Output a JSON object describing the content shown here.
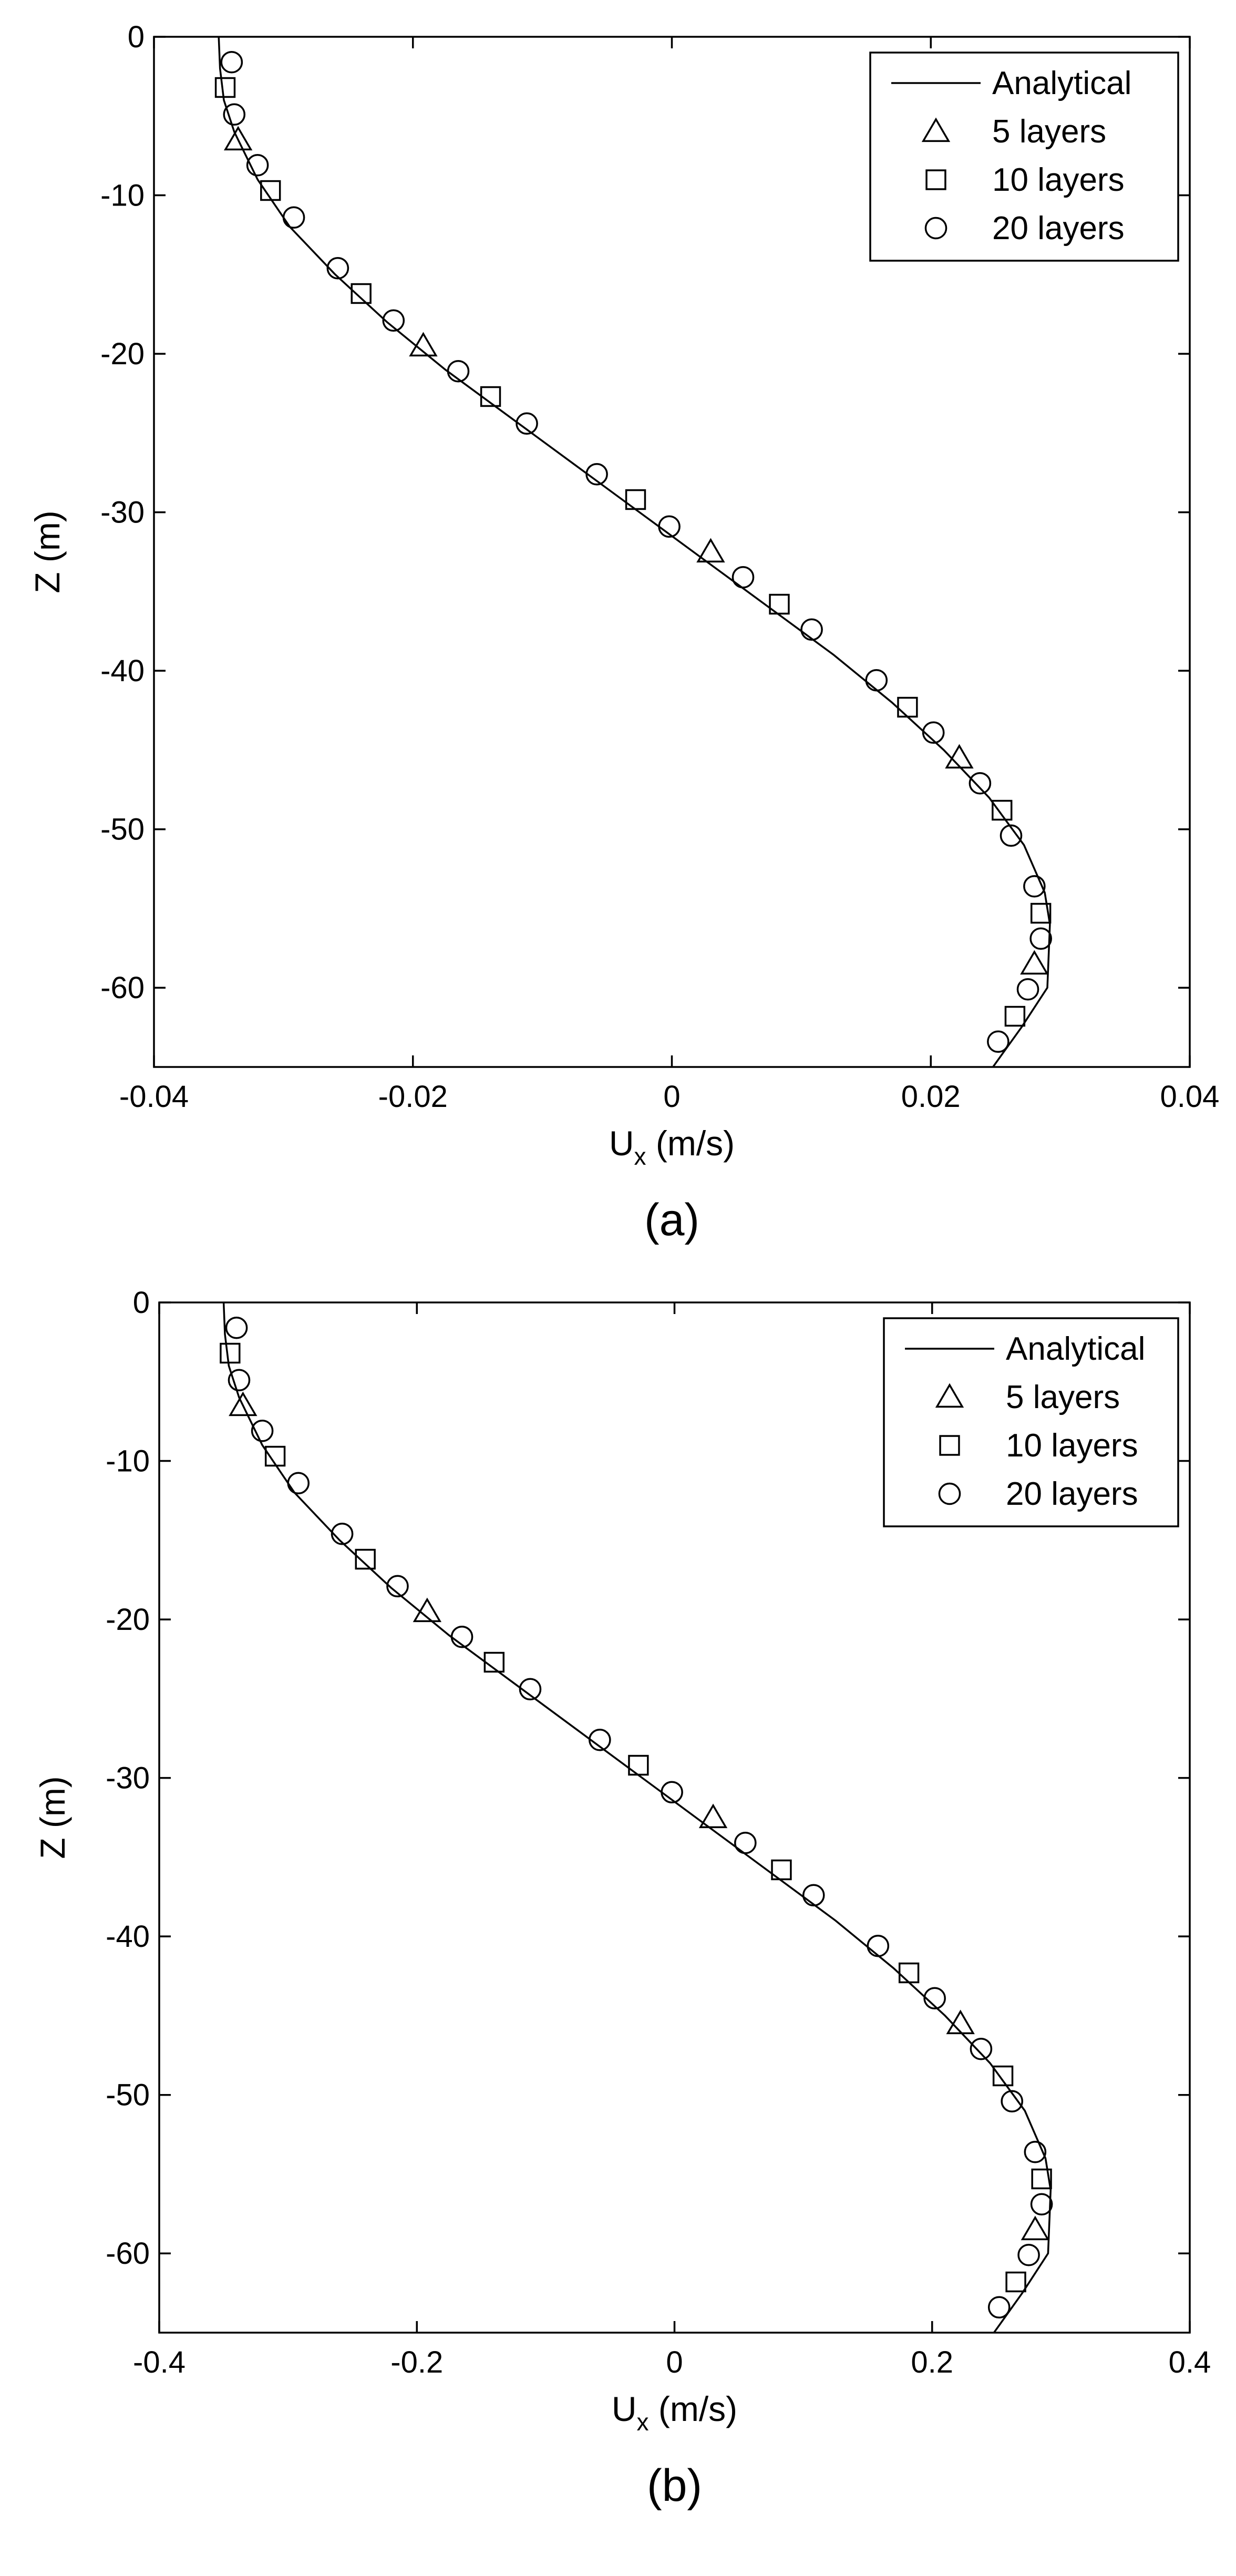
{
  "chart_data": [
    {
      "type": "line",
      "panel_label": "(a)",
      "xlabel_main": "U",
      "xlabel_sub": "x",
      "xlabel_unit": " (m/s)",
      "ylabel": "Z (m)",
      "xlim": [
        -0.04,
        0.04
      ],
      "ylim": [
        -65,
        0
      ],
      "xticks": [
        -0.04,
        -0.02,
        0,
        0.02,
        0.04
      ],
      "xtick_labels": [
        "-0.04",
        "-0.02",
        "0",
        "0.02",
        "0.04"
      ],
      "yticks": [
        0,
        -10,
        -20,
        -30,
        -40,
        -50,
        -60
      ],
      "ytick_labels": [
        "0",
        "-10",
        "-20",
        "-30",
        "-40",
        "-50",
        "-60"
      ],
      "grid": false,
      "legend_position": "top-right",
      "series": [
        {
          "name": "Analytical",
          "marker": "line",
          "points": [
            [
              -0.035,
              0
            ],
            [
              -0.0349,
              -2
            ],
            [
              -0.0346,
              -4
            ],
            [
              -0.0338,
              -6
            ],
            [
              -0.032,
              -9
            ],
            [
              -0.0295,
              -12
            ],
            [
              -0.026,
              -15
            ],
            [
              -0.022,
              -18
            ],
            [
              -0.0175,
              -21
            ],
            [
              -0.0125,
              -24
            ],
            [
              -0.0075,
              -27
            ],
            [
              -0.0025,
              -30
            ],
            [
              0.0025,
              -33
            ],
            [
              0.0075,
              -36
            ],
            [
              0.0125,
              -39
            ],
            [
              0.017,
              -42
            ],
            [
              0.021,
              -45
            ],
            [
              0.0245,
              -48
            ],
            [
              0.0272,
              -51
            ],
            [
              0.0288,
              -54
            ],
            [
              0.0292,
              -56
            ],
            [
              0.029,
              -60
            ],
            [
              0.027,
              -62.5
            ],
            [
              0.0248,
              -65
            ]
          ]
        },
        {
          "name": "5 layers",
          "marker": "triangle",
          "points": [
            [
              -0.0335,
              -6.5
            ],
            [
              -0.0192,
              -19.5
            ],
            [
              0.003,
              -32.5
            ],
            [
              0.0222,
              -45.5
            ],
            [
              0.028,
              -58.5
            ]
          ]
        },
        {
          "name": "10 layers",
          "marker": "square",
          "points": [
            [
              -0.0345,
              -3.2
            ],
            [
              -0.031,
              -9.7
            ],
            [
              -0.024,
              -16.2
            ],
            [
              -0.014,
              -22.7
            ],
            [
              -0.0028,
              -29.2
            ],
            [
              0.0083,
              -35.8
            ],
            [
              0.0182,
              -42.3
            ],
            [
              0.0255,
              -48.8
            ],
            [
              0.0285,
              -55.3
            ],
            [
              0.0265,
              -61.8
            ]
          ]
        },
        {
          "name": "20 layers",
          "marker": "circle",
          "points": [
            [
              -0.034,
              -1.6
            ],
            [
              -0.0338,
              -4.9
            ],
            [
              -0.032,
              -8.1
            ],
            [
              -0.0292,
              -11.4
            ],
            [
              -0.0258,
              -14.6
            ],
            [
              -0.0215,
              -17.9
            ],
            [
              -0.0165,
              -21.1
            ],
            [
              -0.0112,
              -24.4
            ],
            [
              -0.0058,
              -27.6
            ],
            [
              -0.0002,
              -30.9
            ],
            [
              0.0055,
              -34.1
            ],
            [
              0.0108,
              -37.4
            ],
            [
              0.0158,
              -40.6
            ],
            [
              0.0202,
              -43.9
            ],
            [
              0.0238,
              -47.1
            ],
            [
              0.0262,
              -50.4
            ],
            [
              0.028,
              -53.6
            ],
            [
              0.0285,
              -56.9
            ],
            [
              0.0275,
              -60.1
            ],
            [
              0.0252,
              -63.4
            ]
          ]
        }
      ]
    },
    {
      "type": "line",
      "panel_label": "(b)",
      "xlabel_main": "U",
      "xlabel_sub": "x",
      "xlabel_unit": " (m/s)",
      "ylabel": "Z (m)",
      "xlim": [
        -0.4,
        0.4
      ],
      "ylim": [
        -65,
        0
      ],
      "xticks": [
        -0.4,
        -0.2,
        0,
        0.2,
        0.4
      ],
      "xtick_labels": [
        "-0.4",
        "-0.2",
        "0",
        "0.2",
        "0.4"
      ],
      "yticks": [
        0,
        -10,
        -20,
        -30,
        -40,
        -50,
        -60
      ],
      "ytick_labels": [
        "0",
        "-10",
        "-20",
        "-30",
        "-40",
        "-50",
        "-60"
      ],
      "grid": false,
      "legend_position": "top-right",
      "series": [
        {
          "name": "Analytical",
          "marker": "line",
          "points": [
            [
              -0.35,
              0
            ],
            [
              -0.349,
              -2
            ],
            [
              -0.346,
              -4
            ],
            [
              -0.338,
              -6
            ],
            [
              -0.32,
              -9
            ],
            [
              -0.295,
              -12
            ],
            [
              -0.26,
              -15
            ],
            [
              -0.22,
              -18
            ],
            [
              -0.175,
              -21
            ],
            [
              -0.125,
              -24
            ],
            [
              -0.075,
              -27
            ],
            [
              -0.025,
              -30
            ],
            [
              0.025,
              -33
            ],
            [
              0.075,
              -36
            ],
            [
              0.125,
              -39
            ],
            [
              0.17,
              -42
            ],
            [
              0.21,
              -45
            ],
            [
              0.245,
              -48
            ],
            [
              0.272,
              -51
            ],
            [
              0.288,
              -54
            ],
            [
              0.292,
              -56
            ],
            [
              0.29,
              -60
            ],
            [
              0.27,
              -62.5
            ],
            [
              0.248,
              -65
            ]
          ]
        },
        {
          "name": "5 layers",
          "marker": "triangle",
          "points": [
            [
              -0.335,
              -6.5
            ],
            [
              -0.192,
              -19.5
            ],
            [
              0.03,
              -32.5
            ],
            [
              0.222,
              -45.5
            ],
            [
              0.28,
              -58.5
            ]
          ]
        },
        {
          "name": "10 layers",
          "marker": "square",
          "points": [
            [
              -0.345,
              -3.2
            ],
            [
              -0.31,
              -9.7
            ],
            [
              -0.24,
              -16.2
            ],
            [
              -0.14,
              -22.7
            ],
            [
              -0.028,
              -29.2
            ],
            [
              0.083,
              -35.8
            ],
            [
              0.182,
              -42.3
            ],
            [
              0.255,
              -48.8
            ],
            [
              0.285,
              -55.3
            ],
            [
              0.265,
              -61.8
            ]
          ]
        },
        {
          "name": "20 layers",
          "marker": "circle",
          "points": [
            [
              -0.34,
              -1.6
            ],
            [
              -0.338,
              -4.9
            ],
            [
              -0.32,
              -8.1
            ],
            [
              -0.292,
              -11.4
            ],
            [
              -0.258,
              -14.6
            ],
            [
              -0.215,
              -17.9
            ],
            [
              -0.165,
              -21.1
            ],
            [
              -0.112,
              -24.4
            ],
            [
              -0.058,
              -27.6
            ],
            [
              -0.002,
              -30.9
            ],
            [
              0.055,
              -34.1
            ],
            [
              0.108,
              -37.4
            ],
            [
              0.158,
              -40.6
            ],
            [
              0.202,
              -43.9
            ],
            [
              0.238,
              -47.1
            ],
            [
              0.262,
              -50.4
            ],
            [
              0.28,
              -53.6
            ],
            [
              0.285,
              -56.9
            ],
            [
              0.275,
              -60.1
            ],
            [
              0.252,
              -63.4
            ]
          ]
        }
      ]
    }
  ]
}
